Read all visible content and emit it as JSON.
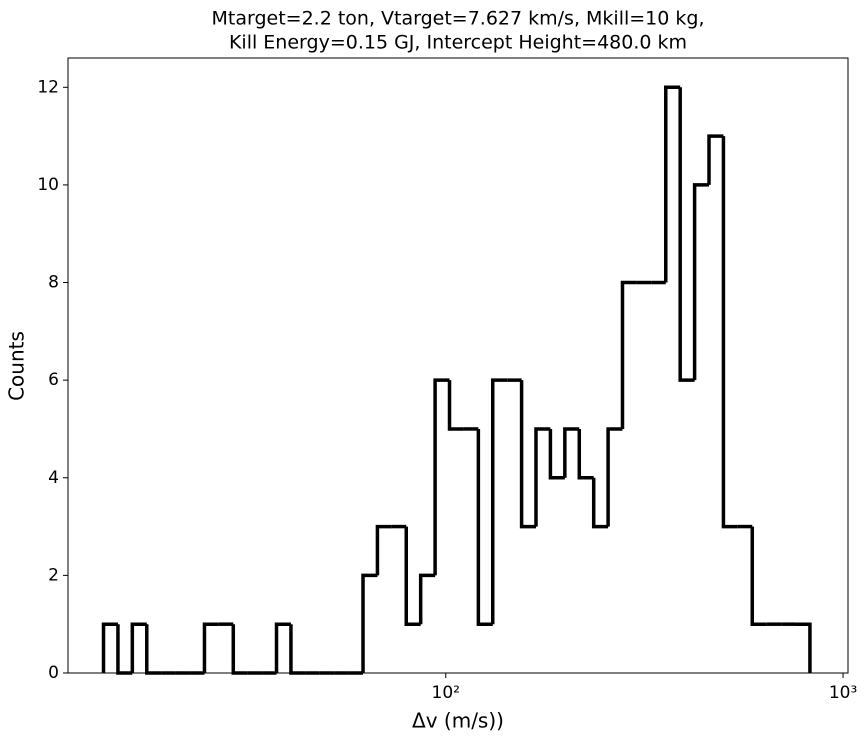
{
  "chart_data": {
    "type": "histogram",
    "title": [
      "Mtarget=2.2 ton, Vtarget=7.627 km/s, Mkill=10 kg,",
      "Kill Energy=0.15 GJ, Intercept Height=480.0 km"
    ],
    "xlabel": "Δv (m/s))",
    "ylabel": "Counts",
    "bins": [
      13.76,
      14.96,
      16.26,
      17.68,
      19.22,
      20.9,
      22.72,
      24.7,
      26.85,
      29.19,
      31.73,
      34.5,
      37.5,
      40.77,
      44.32,
      48.18,
      52.38,
      56.95,
      61.91,
      67.3,
      73.17,
      79.54,
      86.47,
      94.01,
      102.2,
      111.1,
      120.8,
      131.3,
      142.8,
      155.2,
      168.7,
      183.4,
      199.4,
      216.8,
      235.7,
      256.2,
      278.5,
      302.8,
      329.2,
      357.9,
      389.1,
      423.0,
      459.8,
      499.9,
      543.5,
      590.8,
      642.3,
      698.3,
      759.2,
      825.3
    ],
    "values": [
      1,
      0,
      1,
      0,
      0,
      0,
      0,
      1,
      1,
      0,
      0,
      0,
      1,
      0,
      0,
      0,
      0,
      0,
      2,
      3,
      3,
      1,
      2,
      6,
      5,
      5,
      1,
      6,
      6,
      3,
      5,
      4,
      5,
      4,
      3,
      5,
      8,
      8,
      8,
      12,
      6,
      10,
      11,
      3,
      3,
      1,
      1,
      1,
      1
    ],
    "color": "#000000",
    "xscale": "log",
    "xlim": [
      11.2,
      1029
    ],
    "xticks": [
      {
        "value": 100,
        "label": "10²"
      },
      {
        "value": 1000,
        "label": "10³"
      }
    ],
    "ylim": [
      0,
      12.6
    ],
    "yticks": [
      0,
      2,
      4,
      6,
      8,
      10,
      12
    ]
  }
}
